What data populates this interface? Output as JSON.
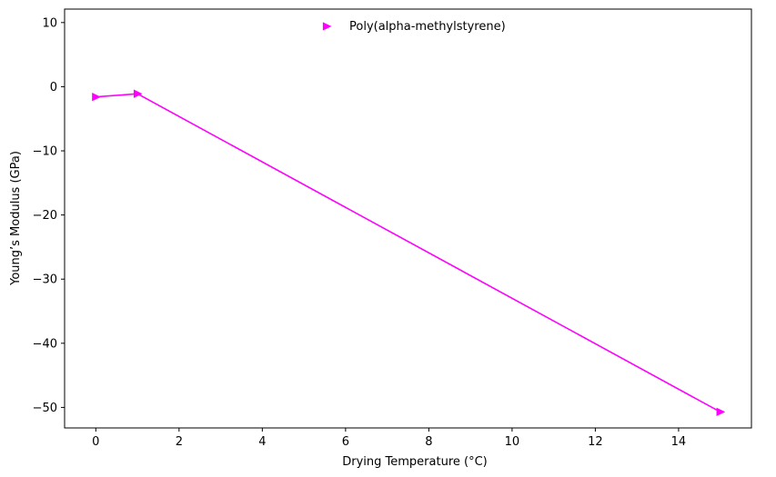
{
  "chart_data": {
    "type": "line",
    "xlabel": "Drying Temperature (°C)",
    "ylabel": "Young’s Modulus (GPa)",
    "xlim": [
      -0.75,
      15.75
    ],
    "ylim": [
      -53.2,
      12.1
    ],
    "xticks": [
      0,
      2,
      4,
      6,
      8,
      10,
      12,
      14
    ],
    "yticks": [
      -50,
      -40,
      -30,
      -20,
      -10,
      0,
      10
    ],
    "xtick_labels": [
      "0",
      "2",
      "4",
      "6",
      "8",
      "10",
      "12",
      "14"
    ],
    "ytick_labels": [
      "−50",
      "−40",
      "−30",
      "−20",
      "−10",
      "0",
      "10"
    ],
    "grid": false,
    "legend_position": "top-center",
    "series": [
      {
        "name": "Poly(alpha-methylstyrene)",
        "color": "#ff00ff",
        "marker": "triangle-right",
        "x": [
          0,
          1,
          15
        ],
        "y": [
          -1.6,
          -1.1,
          -50.7
        ]
      }
    ]
  }
}
